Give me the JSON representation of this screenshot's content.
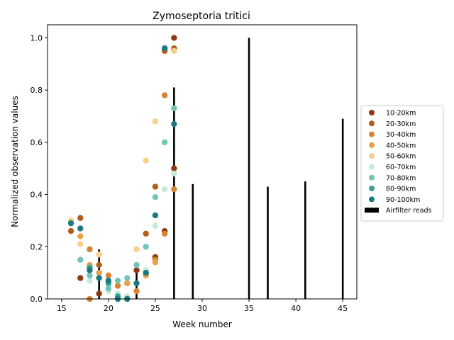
{
  "chart_data": {
    "type": "scatter",
    "title": "Zymoseptoria tritici",
    "xlabel": "Week number",
    "ylabel": "Normalized observation values",
    "xlim": [
      13.5,
      46.5
    ],
    "ylim": [
      0,
      1.05
    ],
    "xticks": [
      15,
      20,
      25,
      30,
      35,
      40,
      45
    ],
    "yticks": [
      0.0,
      0.2,
      0.4,
      0.6,
      0.8,
      1.0
    ],
    "xtick_labels": [
      "15",
      "20",
      "25",
      "30",
      "35",
      "40",
      "45"
    ],
    "ytick_labels": [
      "0.0",
      "0.2",
      "0.4",
      "0.6",
      "0.8",
      "1.0"
    ],
    "grid": false,
    "legend_position": "right",
    "series": [
      {
        "name": "10-20km",
        "color": "#8c3a0f",
        "points": [
          [
            17,
            0.08
          ],
          [
            19,
            0.02
          ],
          [
            23,
            0.11
          ],
          [
            25,
            0.16
          ],
          [
            26,
            0.26
          ],
          [
            27,
            1.0
          ],
          [
            27,
            0.5
          ]
        ]
      },
      {
        "name": "20-30km",
        "color": "#b35d1c",
        "points": [
          [
            16,
            0.26
          ],
          [
            17,
            0.31
          ],
          [
            19,
            0.13
          ],
          [
            22,
            0.06
          ],
          [
            24,
            0.25
          ],
          [
            25,
            0.43
          ],
          [
            26,
            0.95
          ],
          [
            27,
            0.96
          ]
        ]
      },
      {
        "name": "30-40km",
        "color": "#d88330",
        "points": [
          [
            18,
            0.19
          ],
          [
            18,
            0.0
          ],
          [
            20,
            0.09
          ],
          [
            21,
            0.05
          ],
          [
            23,
            0.03
          ],
          [
            25,
            0.15
          ],
          [
            26,
            0.78
          ],
          [
            26,
            0.25
          ],
          [
            27,
            0.42
          ]
        ]
      },
      {
        "name": "40-50km",
        "color": "#e8a24a",
        "points": [
          [
            17,
            0.24
          ],
          [
            18,
            0.13
          ],
          [
            19,
            0.1
          ],
          [
            22,
            0.06
          ],
          [
            24,
            0.09
          ],
          [
            25,
            0.14
          ]
        ]
      },
      {
        "name": "50-60km",
        "color": "#f6d08c",
        "points": [
          [
            16,
            0.3
          ],
          [
            17,
            0.21
          ],
          [
            19,
            0.17
          ],
          [
            23,
            0.19
          ],
          [
            24,
            0.53
          ],
          [
            25,
            0.68
          ],
          [
            27,
            0.95
          ]
        ]
      },
      {
        "name": "60-70km",
        "color": "#c8e8d8",
        "points": [
          [
            18,
            0.07
          ],
          [
            20,
            0.03
          ],
          [
            21,
            0.02
          ],
          [
            22,
            0.01
          ],
          [
            24,
            0.11
          ],
          [
            25,
            0.28
          ],
          [
            26,
            0.42
          ],
          [
            27,
            0.48
          ]
        ]
      },
      {
        "name": "70-80km",
        "color": "#72c4b6",
        "points": [
          [
            17,
            0.15
          ],
          [
            18,
            0.09
          ],
          [
            20,
            0.04
          ],
          [
            21,
            0.07
          ],
          [
            22,
            0.08
          ],
          [
            23,
            0.13
          ],
          [
            24,
            0.2
          ],
          [
            25,
            0.39
          ],
          [
            26,
            0.6
          ],
          [
            27,
            0.73
          ]
        ]
      },
      {
        "name": "80-90km",
        "color": "#33a497",
        "points": [
          [
            18,
            0.12
          ],
          [
            20,
            0.06
          ],
          [
            21,
            0.01
          ],
          [
            22,
            0.0
          ],
          [
            24,
            0.1
          ],
          [
            26,
            0.96
          ]
        ]
      },
      {
        "name": "90-100km",
        "color": "#1d7a80",
        "points": [
          [
            16,
            0.29
          ],
          [
            17,
            0.27
          ],
          [
            18,
            0.11
          ],
          [
            19,
            0.08
          ],
          [
            20,
            0.07
          ],
          [
            21,
            0.0
          ],
          [
            22,
            0.0
          ],
          [
            23,
            0.06
          ],
          [
            24,
            0.1
          ],
          [
            25,
            0.32
          ],
          [
            26,
            0.96
          ],
          [
            27,
            0.67
          ]
        ]
      }
    ],
    "bars": {
      "name": "Airfilter reads",
      "color": "#000000",
      "x": [
        19,
        23,
        27,
        29,
        35,
        37,
        41,
        45
      ],
      "values": [
        0.19,
        0.1,
        0.81,
        0.44,
        1.0,
        0.43,
        0.45,
        0.69
      ]
    }
  }
}
